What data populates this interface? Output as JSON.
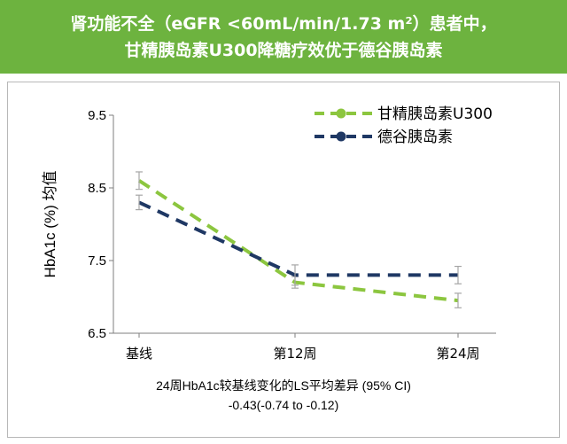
{
  "header": {
    "title_line1": "肾功能不全（eGFR <60mL/min/1.73 m²）患者中，",
    "title_line2": "甘精胰岛素U300降糖疗效优于德谷胰岛素"
  },
  "colors": {
    "header_bg": "#6db33f",
    "green": "#8cc63f",
    "navy": "#1f3864",
    "error_bar": "#a6a6a6"
  },
  "chart_data": {
    "type": "line",
    "title": "",
    "xlabel": "",
    "ylabel": "HbA1c (%) 均值",
    "categories": [
      "基线",
      "第12周",
      "第24周"
    ],
    "ylim": [
      6.5,
      9.5
    ],
    "yticks": [
      6.5,
      7.5,
      8.5,
      9.5
    ],
    "ytick_labels": [
      "6.5",
      "7.5",
      "8.5",
      "9.5"
    ],
    "grid": false,
    "legend_position": "top-right",
    "series": [
      {
        "name": "甘精胰岛素U300",
        "color": "#8cc63f",
        "values": [
          8.6,
          7.2,
          6.95
        ],
        "err": [
          0.12,
          0.08,
          0.1
        ]
      },
      {
        "name": "德谷胰岛素",
        "color": "#1f3864",
        "values": [
          8.3,
          7.3,
          7.3
        ],
        "err": [
          0.1,
          0.14,
          0.12
        ]
      }
    ]
  },
  "footer": {
    "line1": "24周HbA1c较基线变化的LS平均差异 (95% CI)",
    "line2": "-0.43(-0.74 to -0.12)"
  }
}
